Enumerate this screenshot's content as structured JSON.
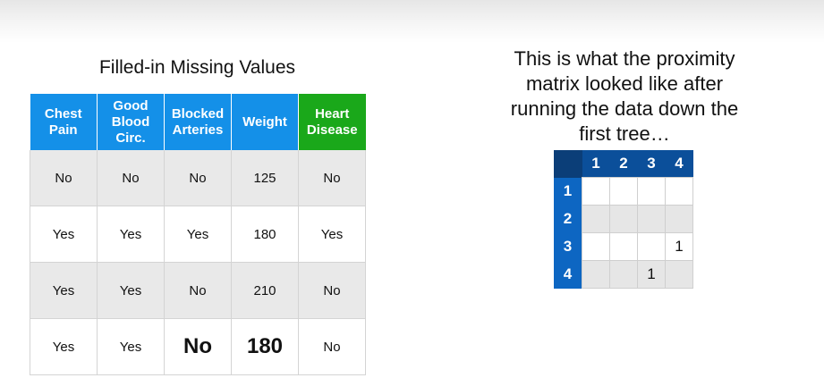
{
  "left": {
    "title": "Filled-in Missing Values",
    "headers": [
      {
        "label": "Chest Pain",
        "color": "#1490e8"
      },
      {
        "label": "Good Blood Circ.",
        "color": "#1490e8"
      },
      {
        "label": "Blocked Arteries",
        "color": "#1490e8"
      },
      {
        "label": "Weight",
        "color": "#1490e8"
      },
      {
        "label": "Heart Disease",
        "color": "#1aa81a"
      }
    ],
    "rows": [
      [
        "No",
        "No",
        "No",
        "125",
        "No"
      ],
      [
        "Yes",
        "Yes",
        "Yes",
        "180",
        "Yes"
      ],
      [
        "Yes",
        "Yes",
        "No",
        "210",
        "No"
      ],
      [
        "Yes",
        "Yes",
        "No",
        "180",
        "No"
      ]
    ]
  },
  "right": {
    "text_lines": [
      "This is what the proximity",
      "matrix looked like after",
      "running the data down the",
      "first tree…"
    ],
    "matrix": {
      "col_headers": [
        "1",
        "2",
        "3",
        "4"
      ],
      "row_headers": [
        "1",
        "2",
        "3",
        "4"
      ],
      "cells": [
        [
          "",
          "",
          "",
          ""
        ],
        [
          "",
          "",
          "",
          ""
        ],
        [
          "",
          "",
          "",
          "1"
        ],
        [
          "",
          "",
          "1",
          ""
        ]
      ]
    }
  }
}
